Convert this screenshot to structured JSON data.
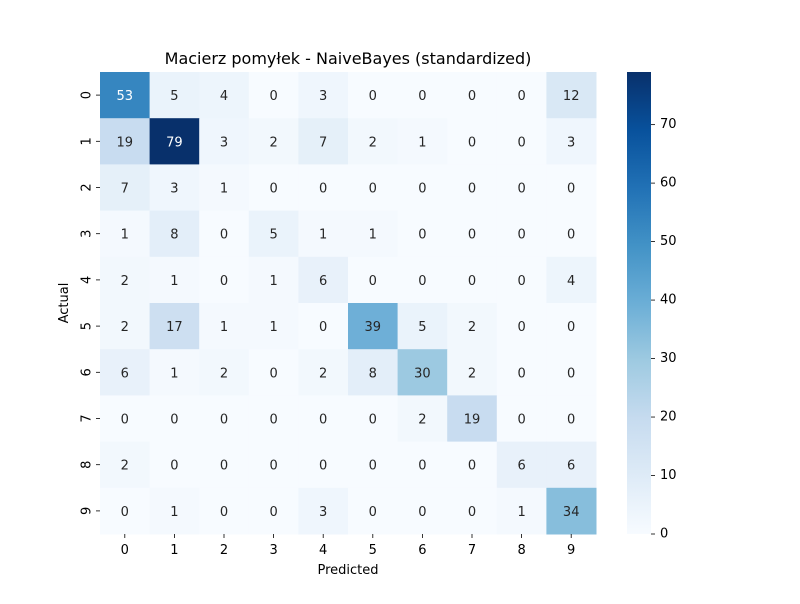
{
  "chart_data": {
    "type": "heatmap",
    "title": "Macierz pomyłek - NaiveBayes (standardized)",
    "xlabel": "Predicted",
    "ylabel": "Actual",
    "x_categories": [
      "0",
      "1",
      "2",
      "3",
      "4",
      "5",
      "6",
      "7",
      "8",
      "9"
    ],
    "y_categories": [
      "0",
      "1",
      "2",
      "3",
      "4",
      "5",
      "6",
      "7",
      "8",
      "9"
    ],
    "matrix": [
      [
        53,
        5,
        4,
        0,
        3,
        0,
        0,
        0,
        0,
        12
      ],
      [
        19,
        79,
        3,
        2,
        7,
        2,
        1,
        0,
        0,
        3
      ],
      [
        7,
        3,
        1,
        0,
        0,
        0,
        0,
        0,
        0,
        0
      ],
      [
        1,
        8,
        0,
        5,
        1,
        1,
        0,
        0,
        0,
        0
      ],
      [
        2,
        1,
        0,
        1,
        6,
        0,
        0,
        0,
        0,
        4
      ],
      [
        2,
        17,
        1,
        1,
        0,
        39,
        5,
        2,
        0,
        0
      ],
      [
        6,
        1,
        2,
        0,
        2,
        8,
        30,
        2,
        0,
        0
      ],
      [
        0,
        0,
        0,
        0,
        0,
        0,
        2,
        19,
        0,
        0
      ],
      [
        2,
        0,
        0,
        0,
        0,
        0,
        0,
        0,
        6,
        6
      ],
      [
        0,
        1,
        0,
        0,
        3,
        0,
        0,
        0,
        1,
        34
      ]
    ],
    "colorbar": {
      "colormap": "Blues",
      "range": [
        0,
        79
      ],
      "ticks": [
        0,
        10,
        20,
        30,
        40,
        50,
        60,
        70
      ],
      "ticks_labels": [
        "0",
        "10",
        "20",
        "30",
        "40",
        "50",
        "60",
        "70"
      ]
    },
    "grid": false
  }
}
